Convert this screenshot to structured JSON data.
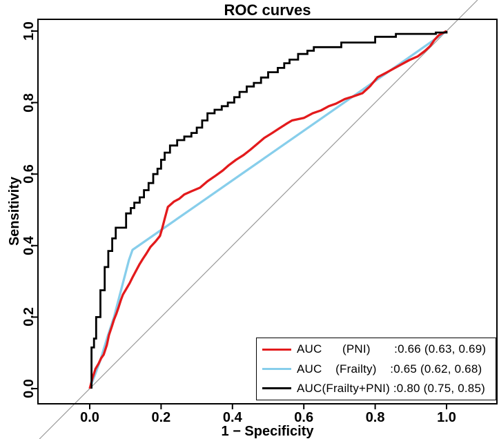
{
  "colors": {
    "pni_red": "#e31a1c",
    "frailty_blue": "#87ceeb",
    "combined_black": "#000000",
    "reference_gray": "#9a9a9a",
    "axis": "#000000",
    "background": "#ffffff"
  },
  "legend": {
    "rows": [
      {
        "key": "pni",
        "color": "#e31a1c",
        "line_width": 3,
        "label": "AUC      (PNI)       :0.66 (0.63, 0.69)"
      },
      {
        "key": "frailty",
        "color": "#87ceeb",
        "line_width": 3,
        "label": "AUC    (Frailty)    :0.65 (0.62, 0.68)"
      },
      {
        "key": "frailty-pni",
        "color": "#000000",
        "line_width": 2.6,
        "label": "AUC(Frailty+PNI) :0.80 (0.75, 0.85)"
      }
    ]
  },
  "chart_data": {
    "type": "line",
    "title": "ROC curves",
    "xlabel": "1 − Specificity",
    "ylabel": "Sensitivity",
    "xlim": [
      -0.145,
      1.141
    ],
    "ylim": [
      -0.042,
      1.033
    ],
    "grid": false,
    "legend_position": "bottom-right",
    "x_ticks": [
      0.0,
      0.2,
      0.4,
      0.6,
      0.8,
      1.0
    ],
    "x_tick_labels": [
      "0.0",
      "0.2",
      "0.4",
      "0.6",
      "0.8",
      "1.0"
    ],
    "y_ticks": [
      0.0,
      0.2,
      0.4,
      0.6,
      0.8,
      1.0
    ],
    "y_tick_labels": [
      "0.0",
      "0.2",
      "0.4",
      "0.6",
      "0.8",
      "1.0"
    ],
    "reference_line": {
      "type": "diagonal",
      "from": [
        0,
        0
      ],
      "to": [
        1,
        1
      ],
      "color": "#9a9a9a",
      "clipped": false
    },
    "series": [
      {
        "key": "pni",
        "name": "PNI",
        "auc": "0.66",
        "auc_ci": "(0.63, 0.69)",
        "color": "#e31a1c",
        "curve": "line",
        "points": [
          [
            0,
            0
          ],
          [
            0.008,
            0.03
          ],
          [
            0.016,
            0.055
          ],
          [
            0.025,
            0.07
          ],
          [
            0.032,
            0.085
          ],
          [
            0.039,
            0.095
          ],
          [
            0.048,
            0.122
          ],
          [
            0.054,
            0.15
          ],
          [
            0.062,
            0.174
          ],
          [
            0.068,
            0.193
          ],
          [
            0.074,
            0.208
          ],
          [
            0.081,
            0.228
          ],
          [
            0.087,
            0.247
          ],
          [
            0.093,
            0.263
          ],
          [
            0.103,
            0.28
          ],
          [
            0.112,
            0.295
          ],
          [
            0.12,
            0.311
          ],
          [
            0.13,
            0.33
          ],
          [
            0.139,
            0.347
          ],
          [
            0.149,
            0.363
          ],
          [
            0.159,
            0.378
          ],
          [
            0.17,
            0.396
          ],
          [
            0.184,
            0.411
          ],
          [
            0.197,
            0.427
          ],
          [
            0.203,
            0.448
          ],
          [
            0.21,
            0.475
          ],
          [
            0.219,
            0.508
          ],
          [
            0.236,
            0.523
          ],
          [
            0.251,
            0.531
          ],
          [
            0.265,
            0.543
          ],
          [
            0.285,
            0.552
          ],
          [
            0.309,
            0.562
          ],
          [
            0.33,
            0.58
          ],
          [
            0.352,
            0.595
          ],
          [
            0.373,
            0.61
          ],
          [
            0.39,
            0.625
          ],
          [
            0.41,
            0.64
          ],
          [
            0.431,
            0.653
          ],
          [
            0.45,
            0.668
          ],
          [
            0.47,
            0.685
          ],
          [
            0.489,
            0.701
          ],
          [
            0.51,
            0.714
          ],
          [
            0.53,
            0.727
          ],
          [
            0.55,
            0.74
          ],
          [
            0.567,
            0.75
          ],
          [
            0.6,
            0.757
          ],
          [
            0.625,
            0.77
          ],
          [
            0.648,
            0.778
          ],
          [
            0.67,
            0.79
          ],
          [
            0.69,
            0.797
          ],
          [
            0.715,
            0.81
          ],
          [
            0.735,
            0.816
          ],
          [
            0.764,
            0.826
          ],
          [
            0.785,
            0.845
          ],
          [
            0.807,
            0.871
          ],
          [
            0.832,
            0.884
          ],
          [
            0.861,
            0.9
          ],
          [
            0.896,
            0.919
          ],
          [
            0.919,
            0.929
          ],
          [
            0.94,
            0.945
          ],
          [
            0.954,
            0.958
          ],
          [
            0.966,
            0.975
          ],
          [
            0.978,
            0.988
          ],
          [
            1,
            1
          ]
        ]
      },
      {
        "key": "frailty",
        "name": "Frailty",
        "auc": "0.65",
        "auc_ci": "(0.62, 0.68)",
        "color": "#87ceeb",
        "curve": "line",
        "points": [
          [
            0,
            0
          ],
          [
            0.015,
            0.04
          ],
          [
            0.03,
            0.08
          ],
          [
            0.05,
            0.145
          ],
          [
            0.068,
            0.2
          ],
          [
            0.083,
            0.257
          ],
          [
            0.097,
            0.31
          ],
          [
            0.11,
            0.36
          ],
          [
            0.12,
            0.388
          ],
          [
            0.3,
            0.513
          ],
          [
            0.5,
            0.652
          ],
          [
            0.7,
            0.791
          ],
          [
            0.9,
            0.93
          ],
          [
            1,
            1
          ]
        ]
      },
      {
        "key": "frailty-pni",
        "name": "Frailty+PNI",
        "auc": "0.80",
        "auc_ci": "(0.75, 0.85)",
        "color": "#000000",
        "curve": "step",
        "points": [
          [
            0.005,
            0
          ],
          [
            0.005,
            0.115
          ],
          [
            0.012,
            0.14
          ],
          [
            0.018,
            0.2
          ],
          [
            0.03,
            0.275
          ],
          [
            0.042,
            0.34
          ],
          [
            0.052,
            0.385
          ],
          [
            0.063,
            0.42
          ],
          [
            0.073,
            0.45
          ],
          [
            0.102,
            0.49
          ],
          [
            0.115,
            0.505
          ],
          [
            0.125,
            0.52
          ],
          [
            0.14,
            0.535
          ],
          [
            0.152,
            0.555
          ],
          [
            0.165,
            0.575
          ],
          [
            0.178,
            0.6
          ],
          [
            0.19,
            0.615
          ],
          [
            0.2,
            0.64
          ],
          [
            0.21,
            0.66
          ],
          [
            0.225,
            0.68
          ],
          [
            0.245,
            0.695
          ],
          [
            0.265,
            0.705
          ],
          [
            0.285,
            0.715
          ],
          [
            0.3,
            0.73
          ],
          [
            0.315,
            0.75
          ],
          [
            0.33,
            0.77
          ],
          [
            0.35,
            0.78
          ],
          [
            0.37,
            0.79
          ],
          [
            0.387,
            0.8
          ],
          [
            0.405,
            0.815
          ],
          [
            0.42,
            0.83
          ],
          [
            0.44,
            0.845
          ],
          [
            0.46,
            0.855
          ],
          [
            0.48,
            0.87
          ],
          [
            0.5,
            0.885
          ],
          [
            0.527,
            0.897
          ],
          [
            0.545,
            0.91
          ],
          [
            0.56,
            0.92
          ],
          [
            0.584,
            0.936
          ],
          [
            0.61,
            0.945
          ],
          [
            0.628,
            0.955
          ],
          [
            0.705,
            0.968
          ],
          [
            0.8,
            0.984
          ],
          [
            0.858,
            0.992
          ],
          [
            0.97,
            0.996
          ],
          [
            1,
            1
          ]
        ]
      }
    ]
  }
}
